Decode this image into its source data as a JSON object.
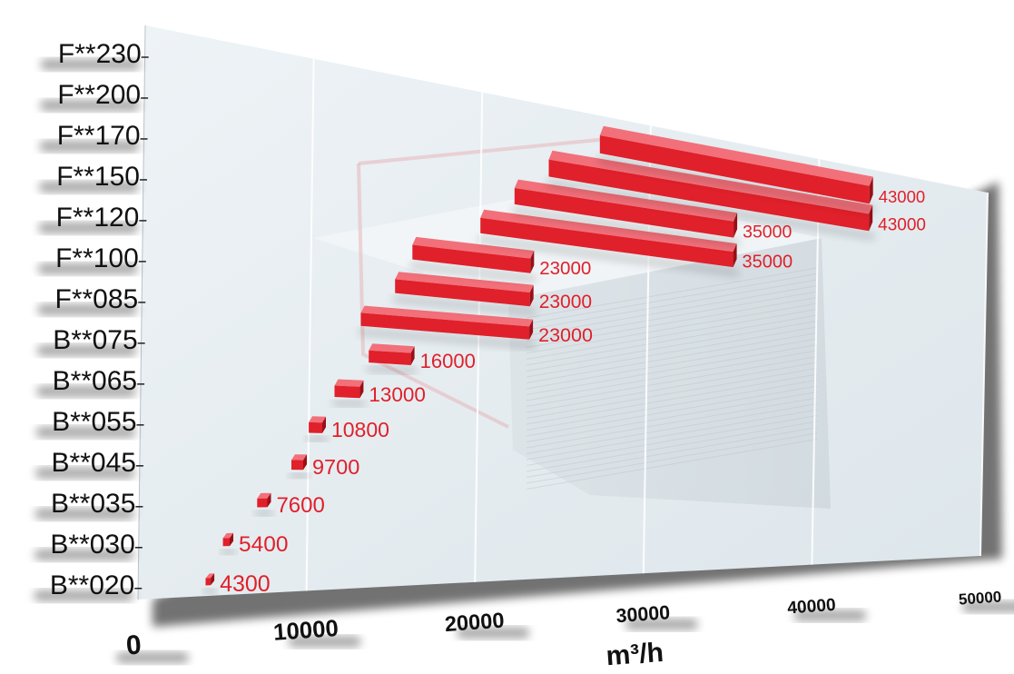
{
  "chart_data": {
    "type": "bar",
    "orientation": "horizontal",
    "categories": [
      "B**020",
      "B**030",
      "B**035",
      "B**045",
      "B**055",
      "B**065",
      "B**075",
      "F**085",
      "F**100",
      "F**120",
      "F**150",
      "F**170",
      "F**200",
      "F**230"
    ],
    "series": [
      {
        "range_start": [
          4000,
          5000,
          7000,
          9000,
          10000,
          11500,
          13500,
          13000,
          15000,
          16000,
          20000,
          22000,
          24000,
          27000
        ],
        "values": [
          4300,
          5400,
          7600,
          9700,
          10800,
          13000,
          16000,
          23000,
          23000,
          23000,
          35000,
          35000,
          43000,
          43000
        ],
        "value_labels": [
          "4300",
          "5400",
          "7600",
          "9700",
          "10800",
          "13000",
          "16000",
          "23000",
          "23000",
          "23000",
          "35000",
          "35000",
          "43000",
          "43000"
        ]
      }
    ],
    "x_ticks": [
      "0",
      "10000",
      "20000",
      "30000",
      "40000",
      "50000"
    ],
    "xlabel": "m³/h",
    "xlim": [
      0,
      50000
    ],
    "grid": true,
    "perspective": true,
    "colors": {
      "bar": "#e0202a",
      "bar_top": "#f2707a",
      "bar_dark": "#9a0f16",
      "label": "#e0202a",
      "panel": "#e8eef2",
      "text": "#111111"
    }
  }
}
